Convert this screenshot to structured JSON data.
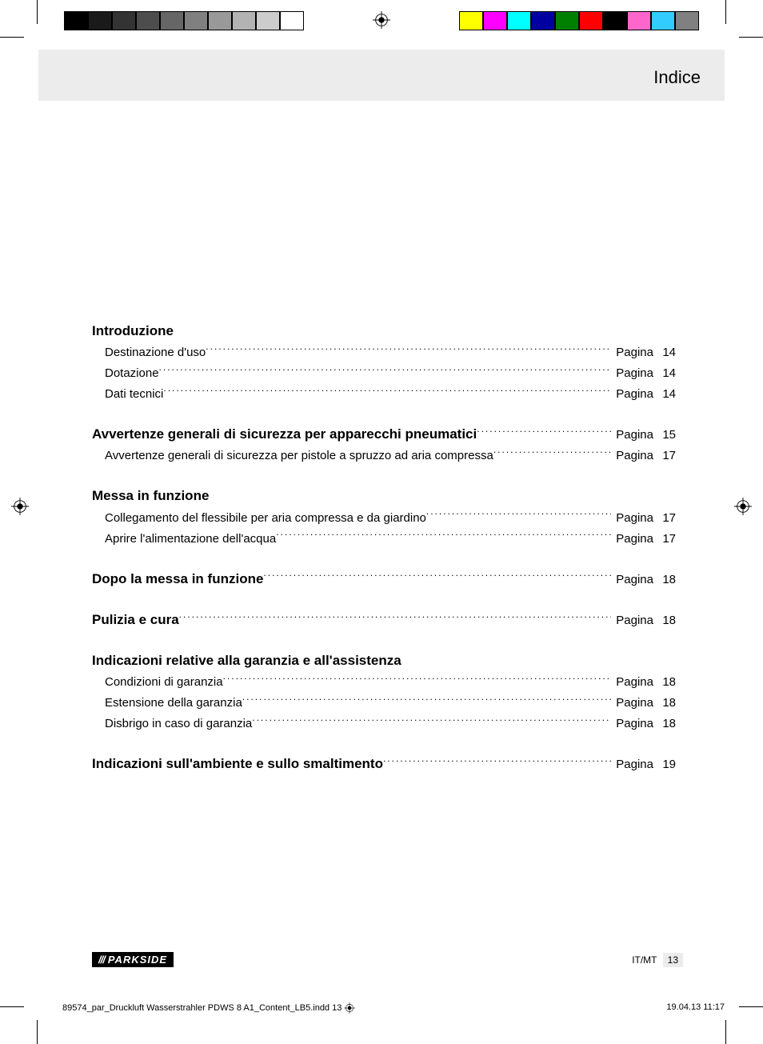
{
  "header": {
    "title": "Indice"
  },
  "page_label": "Pagina",
  "toc": [
    {
      "heading": "Introduzione",
      "heading_has_page": false,
      "entries": [
        {
          "title": "Destinazione d'uso",
          "page": 14
        },
        {
          "title": "Dotazione",
          "page": 14
        },
        {
          "title": "Dati tecnici",
          "page": 14
        }
      ]
    },
    {
      "heading": "Avvertenze generali di sicurezza per apparecchi pneumatici",
      "heading_has_page": true,
      "heading_page": 15,
      "entries": [
        {
          "title": "Avvertenze generali di sicurezza per pistole a spruzzo ad aria compressa",
          "page": 17
        }
      ]
    },
    {
      "heading": "Messa in funzione",
      "heading_has_page": false,
      "entries": [
        {
          "title": "Collegamento del flessibile per aria compressa e da giardino",
          "page": 17
        },
        {
          "title": "Aprire l'alimentazione dell'acqua",
          "page": 17
        }
      ]
    },
    {
      "heading": "Dopo la messa in funzione",
      "heading_has_page": true,
      "heading_page": 18,
      "entries": []
    },
    {
      "heading": "Pulizia e cura",
      "heading_has_page": true,
      "heading_page": 18,
      "entries": []
    },
    {
      "heading": "Indicazioni relative alla garanzia e all'assistenza",
      "heading_has_page": false,
      "entries": [
        {
          "title": "Condizioni di garanzia",
          "page": 18
        },
        {
          "title": "Estensione della garanzia",
          "page": 18
        },
        {
          "title": "Disbrigo in caso di garanzia",
          "page": 18
        }
      ]
    },
    {
      "heading": "Indicazioni sull'ambiente e sullo smaltimento",
      "heading_has_page": true,
      "heading_page": 19,
      "entries": []
    }
  ],
  "footer": {
    "logo_text": "PARKSIDE",
    "lang_code": "IT/MT",
    "page_number": 13
  },
  "slug": {
    "file": "89574_par_Druckluft Wasserstrahler PDWS 8 A1_Content_LB5.indd   13",
    "datetime": "19.04.13   11:17"
  },
  "print_marks": {
    "gray_bar": [
      "#000000",
      "#1a1a1a",
      "#333333",
      "#4d4d4d",
      "#666666",
      "#808080",
      "#999999",
      "#b3b3b3",
      "#cccccc",
      "#ffffff"
    ],
    "color_bar": [
      "#ffff00",
      "#ff00ff",
      "#00ffff",
      "#0000a0",
      "#008000",
      "#ff0000",
      "#000000",
      "#ff66cc",
      "#33ccff",
      "#808080"
    ]
  }
}
